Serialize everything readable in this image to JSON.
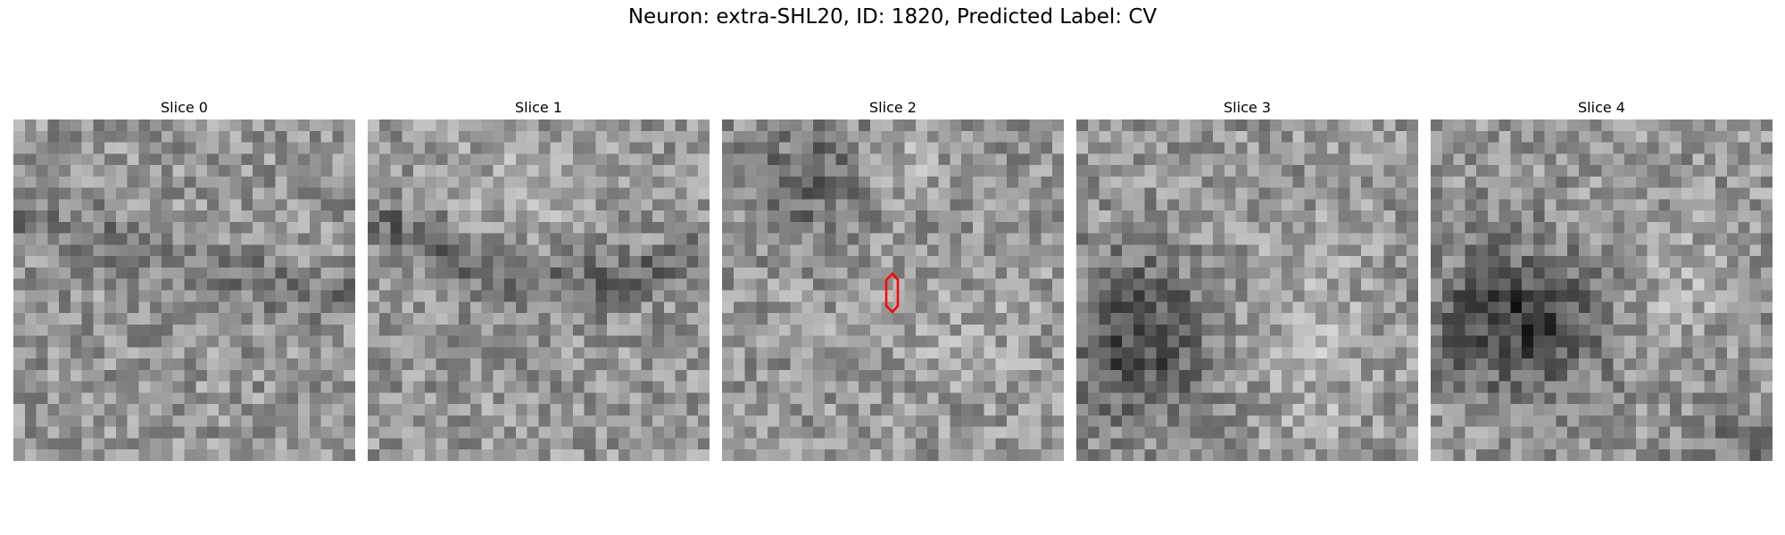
{
  "title": "Neuron: extra-SHL20, ID: 1820, Predicted Label: CV",
  "slices": [
    {
      "label": "Slice 0"
    },
    {
      "label": "Slice 1"
    },
    {
      "label": "Slice 2"
    },
    {
      "label": "Slice 3"
    },
    {
      "label": "Slice 4"
    }
  ],
  "colors": {
    "marker": "#ff0000",
    "background": "#ffffff"
  }
}
